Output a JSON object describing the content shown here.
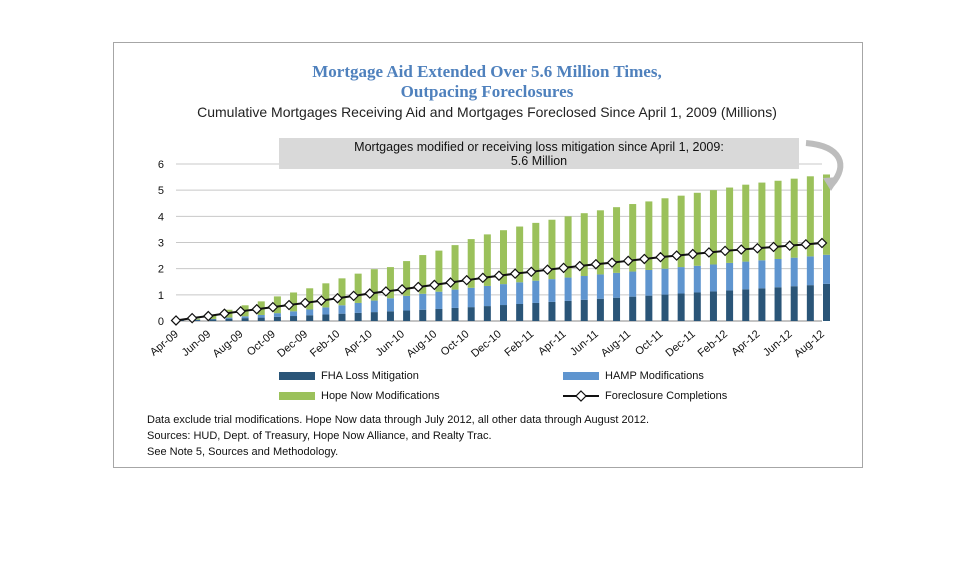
{
  "chart_title_line1": "Mortgage Aid Extended Over 5.6 Million Times,",
  "chart_title_line2": "Outpacing Foreclosures",
  "subtitle": "Cumulative Mortgages Receiving Aid and Mortgages Foreclosed Since April 1, 2009 (Millions)",
  "callout_line1": "Mortgages modified or receiving loss mitigation since April 1, 2009:",
  "callout_line2": "5.6 Million",
  "notes": {
    "line1": "Data exclude trial modifications. Hope Now data through July 2012, all other data through August 2012.",
    "line2": "Sources:  HUD, Dept. of Treasury, Hope Now Alliance, and Realty Trac.",
    "line3": "See Note 5, Sources and Methodology."
  },
  "colors": {
    "fha": "#2a5578",
    "hamp": "#5f95cf",
    "hope": "#9bc15b",
    "line": "#111111",
    "title": "#4f81bd"
  },
  "chart_data": {
    "type": "bar",
    "stacked": true,
    "ylim": [
      0,
      6
    ],
    "yticks": [
      0,
      1,
      2,
      3,
      4,
      5,
      6
    ],
    "x": [
      "Apr-09",
      "May-09",
      "Jun-09",
      "Jul-09",
      "Aug-09",
      "Sep-09",
      "Oct-09",
      "Nov-09",
      "Dec-09",
      "Jan-10",
      "Feb-10",
      "Mar-10",
      "Apr-10",
      "May-10",
      "Jun-10",
      "Jul-10",
      "Aug-10",
      "Sep-10",
      "Oct-10",
      "Nov-10",
      "Dec-10",
      "Jan-11",
      "Feb-11",
      "Mar-11",
      "Apr-11",
      "May-11",
      "Jun-11",
      "Jul-11",
      "Aug-11",
      "Sep-11",
      "Oct-11",
      "Nov-11",
      "Dec-11",
      "Jan-12",
      "Feb-12",
      "Mar-12",
      "Apr-12",
      "May-12",
      "Jun-12",
      "Jul-12",
      "Aug-12"
    ],
    "x_tick_labels": [
      "Apr-09",
      "Jun-09",
      "Aug-09",
      "Oct-09",
      "Dec-09",
      "Feb-10",
      "Apr-10",
      "Jun-10",
      "Aug-10",
      "Oct-10",
      "Dec-10",
      "Feb-11",
      "Apr-11",
      "Jun-11",
      "Aug-11",
      "Oct-11",
      "Dec-11",
      "Feb-12",
      "Apr-12",
      "Jun-12",
      "Aug-12"
    ],
    "grid": true,
    "legend_position": "bottom",
    "series": [
      {
        "name": "FHA Loss Mitigation",
        "kind": "bar",
        "values": [
          0.02,
          0.04,
          0.06,
          0.09,
          0.11,
          0.13,
          0.16,
          0.19,
          0.22,
          0.25,
          0.28,
          0.31,
          0.34,
          0.37,
          0.4,
          0.43,
          0.46,
          0.5,
          0.53,
          0.57,
          0.61,
          0.65,
          0.69,
          0.73,
          0.77,
          0.81,
          0.85,
          0.89,
          0.93,
          0.97,
          1.01,
          1.05,
          1.09,
          1.13,
          1.17,
          1.21,
          1.25,
          1.29,
          1.33,
          1.37,
          1.42
        ]
      },
      {
        "name": "HAMP Modifications",
        "kind": "bar",
        "values": [
          0.0,
          0.01,
          0.02,
          0.04,
          0.07,
          0.1,
          0.14,
          0.18,
          0.22,
          0.27,
          0.32,
          0.38,
          0.44,
          0.5,
          0.56,
          0.61,
          0.66,
          0.7,
          0.74,
          0.77,
          0.8,
          0.83,
          0.85,
          0.87,
          0.89,
          0.91,
          0.93,
          0.95,
          0.96,
          0.98,
          0.99,
          1.01,
          1.02,
          1.03,
          1.05,
          1.06,
          1.07,
          1.08,
          1.09,
          1.1,
          1.11
        ]
      },
      {
        "name": "Hope Now Modifications",
        "kind": "bar",
        "values": [
          0.0,
          0.04,
          0.13,
          0.3,
          0.42,
          0.52,
          0.64,
          0.72,
          0.81,
          0.92,
          1.03,
          1.12,
          1.2,
          1.19,
          1.33,
          1.48,
          1.57,
          1.7,
          1.86,
          1.97,
          2.06,
          2.13,
          2.21,
          2.27,
          2.34,
          2.4,
          2.45,
          2.51,
          2.58,
          2.62,
          2.69,
          2.73,
          2.79,
          2.84,
          2.88,
          2.94,
          2.97,
          2.99,
          3.02,
          3.06,
          3.07
        ]
      },
      {
        "name": "Foreclosure Completions",
        "kind": "line",
        "values": [
          0.02,
          0.11,
          0.19,
          0.28,
          0.37,
          0.45,
          0.53,
          0.61,
          0.69,
          0.78,
          0.87,
          0.96,
          1.05,
          1.13,
          1.21,
          1.3,
          1.38,
          1.47,
          1.56,
          1.65,
          1.73,
          1.81,
          1.88,
          1.96,
          2.03,
          2.1,
          2.17,
          2.23,
          2.3,
          2.37,
          2.44,
          2.5,
          2.56,
          2.62,
          2.68,
          2.73,
          2.78,
          2.83,
          2.88,
          2.93,
          2.98
        ]
      }
    ]
  }
}
